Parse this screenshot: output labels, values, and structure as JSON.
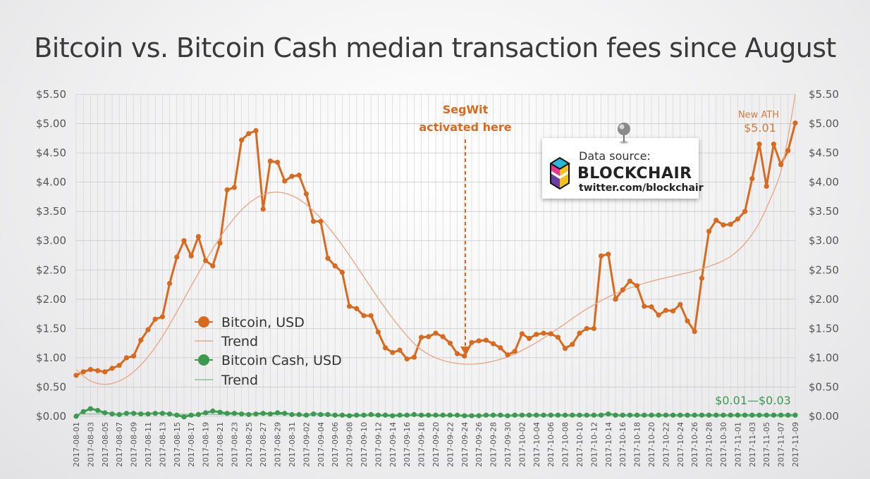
{
  "chart_data": {
    "type": "line",
    "title": "Bitcoin vs. Bitcoin Cash median transaction fees since August",
    "ylim": [
      0,
      5.5
    ],
    "yticks_left": [
      "$0.00",
      "$0.50",
      "$1.00",
      "$1.50",
      "$2.00",
      "$2.50",
      "$3.00",
      "$3.50",
      "$4.00",
      "$4.50",
      "$5.00",
      "$5.50"
    ],
    "yticks_right": [
      "$0.00",
      "$0.50",
      "$1.00",
      "$1.50",
      "$2.00",
      "$2.50",
      "$3.00",
      "$3.50",
      "$4.00",
      "$4.50",
      "$5.00",
      "$5.50"
    ],
    "x_start": "2017-08-01",
    "x_end": "2017-11-09",
    "x_labels": [
      "2017-08-01",
      "2017-08-03",
      "2017-08-05",
      "2017-08-07",
      "2017-08-09",
      "2017-08-11",
      "2017-08-13",
      "2017-08-15",
      "2017-08-17",
      "2017-08-19",
      "2017-08-21",
      "2017-08-23",
      "2017-08-25",
      "2017-08-27",
      "2017-08-29",
      "2017-08-31",
      "2017-09-02",
      "2017-09-04",
      "2017-09-06",
      "2017-09-08",
      "2017-09-10",
      "2017-09-12",
      "2017-09-14",
      "2017-09-16",
      "2017-09-18",
      "2017-09-20",
      "2017-09-22",
      "2017-09-24",
      "2017-09-26",
      "2017-09-28",
      "2017-09-30",
      "2017-10-02",
      "2017-10-04",
      "2017-10-06",
      "2017-10-08",
      "2017-10-10",
      "2017-10-12",
      "2017-10-14",
      "2017-10-16",
      "2017-10-18",
      "2017-10-20",
      "2017-10-22",
      "2017-10-24",
      "2017-10-26",
      "2017-10-28",
      "2017-10-30",
      "2017-11-01",
      "2017-11-03",
      "2017-11-05",
      "2017-11-07",
      "2017-11-09"
    ],
    "grid": true,
    "legend_position": "center-left",
    "series": [
      {
        "name": "Bitcoin, USD",
        "color": "#d86a1f",
        "marker": "circle",
        "values": [
          0.7,
          0.76,
          0.8,
          0.78,
          0.76,
          0.82,
          0.87,
          1.0,
          1.03,
          1.3,
          1.48,
          1.66,
          1.7,
          2.27,
          2.72,
          3.0,
          2.74,
          3.07,
          2.66,
          2.57,
          2.96,
          3.87,
          3.91,
          4.72,
          4.83,
          4.88,
          3.54,
          4.36,
          4.34,
          4.02,
          4.1,
          4.12,
          3.8,
          3.33,
          3.33,
          2.7,
          2.57,
          2.46,
          1.88,
          1.84,
          1.72,
          1.72,
          1.44,
          1.17,
          1.09,
          1.13,
          0.98,
          1.01,
          1.35,
          1.36,
          1.42,
          1.36,
          1.25,
          1.07,
          1.03,
          1.26,
          1.29,
          1.3,
          1.24,
          1.17,
          1.05,
          1.11,
          1.41,
          1.33,
          1.4,
          1.42,
          1.41,
          1.35,
          1.16,
          1.23,
          1.42,
          1.5,
          1.5,
          2.74,
          2.77,
          2.0,
          2.16,
          2.31,
          2.23,
          1.88,
          1.87,
          1.73,
          1.81,
          1.8,
          1.91,
          1.63,
          1.45,
          2.36,
          3.16,
          3.35,
          3.27,
          3.28,
          3.37,
          3.5,
          4.06,
          4.65,
          3.93,
          4.65,
          4.3,
          4.54,
          5.01
        ]
      },
      {
        "name": "Trend",
        "color": "#e8a98a",
        "marker": "none",
        "values": [
          0.8,
          0.62,
          0.55,
          0.57,
          0.67,
          0.85,
          1.1,
          1.42,
          1.79,
          2.18,
          2.56,
          2.92,
          3.24,
          3.5,
          3.69,
          3.8,
          3.83,
          3.78,
          3.66,
          3.47,
          3.23,
          2.95,
          2.64,
          2.32,
          2.0,
          1.7,
          1.43,
          1.2,
          1.05,
          0.96,
          0.91,
          0.89,
          0.9,
          0.94,
          1.0,
          1.09,
          1.2,
          1.33,
          1.47,
          1.62,
          1.77,
          1.9,
          2.02,
          2.12,
          2.2,
          2.27,
          2.33,
          2.38,
          2.43,
          2.48,
          2.55,
          2.63,
          2.75,
          2.95,
          3.25,
          3.7,
          4.3,
          5.5
        ]
      },
      {
        "name": "Bitcoin Cash, USD",
        "color": "#3a9a50",
        "marker": "circle",
        "values": [
          0.0,
          0.08,
          0.13,
          0.1,
          0.06,
          0.04,
          0.03,
          0.05,
          0.05,
          0.04,
          0.04,
          0.05,
          0.05,
          0.04,
          0.02,
          -0.01,
          0.02,
          0.03,
          0.06,
          0.09,
          0.07,
          0.05,
          0.05,
          0.04,
          0.03,
          0.04,
          0.05,
          0.04,
          0.06,
          0.05,
          0.03,
          0.03,
          0.02,
          0.04,
          0.03,
          0.03,
          0.02,
          0.02,
          0.01,
          0.02,
          0.02,
          0.03,
          0.02,
          0.02,
          0.01,
          0.02,
          0.02,
          0.03,
          0.02,
          0.02,
          0.02,
          0.02,
          0.02,
          0.02,
          0.01,
          0.01,
          0.01,
          0.02,
          0.02,
          0.02,
          0.01,
          0.02,
          0.02,
          0.02,
          0.02,
          0.02,
          0.02,
          0.02,
          0.02,
          0.02,
          0.02,
          0.02,
          0.02,
          0.02,
          0.04,
          0.02,
          0.02,
          0.02,
          0.02,
          0.02,
          0.02,
          0.02,
          0.02,
          0.02,
          0.02,
          0.02,
          0.02,
          0.02,
          0.02,
          0.02,
          0.02,
          0.02,
          0.02,
          0.02,
          0.02,
          0.02,
          0.02,
          0.02,
          0.02,
          0.02,
          0.02
        ]
      },
      {
        "name": "Trend",
        "color": "#8fbf96",
        "marker": "none",
        "values": [
          0.04,
          0.04,
          0.03,
          0.03,
          0.03,
          0.03,
          0.02,
          0.02,
          0.02,
          0.02,
          0.02
        ]
      }
    ],
    "annotations": {
      "segwit_line1": "SegWit",
      "segwit_line2": "activated here",
      "segwit_date": "2017-09-24",
      "ath_label": "New ATH",
      "ath_value": "$5.01",
      "bch_range": "$0.01—$0.03"
    }
  },
  "source_box": {
    "label": "Data source:",
    "name": "BLOCKCHAIR",
    "handle": "twitter.com/blockchair",
    "logo_icon": "blockchair-cube-logo",
    "pin_icon": "push-pin-icon"
  }
}
